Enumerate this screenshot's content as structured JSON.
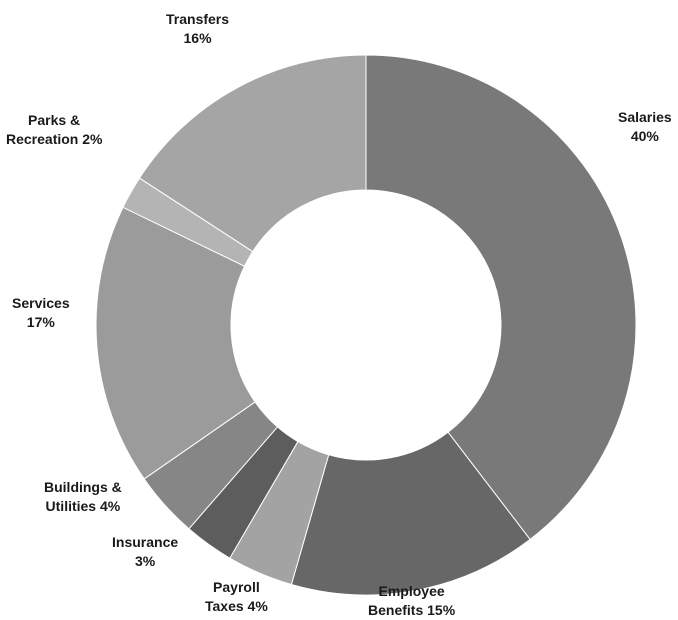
{
  "chart_data": {
    "type": "pie",
    "donut": true,
    "title": "",
    "legend": "none",
    "slices": [
      {
        "category": "Salaries",
        "value": 40,
        "line1": "Salaries",
        "line2": "40%",
        "color": "#797979"
      },
      {
        "category": "Employee Benefits",
        "value": 15,
        "line1": "Employee",
        "line2": "Benefits 15%",
        "color": "#676767"
      },
      {
        "category": "Payroll Taxes",
        "value": 4,
        "line1": "Payroll",
        "line2": "Taxes 4%",
        "color": "#a3a3a3"
      },
      {
        "category": "Insurance",
        "value": 3,
        "line1": "Insurance",
        "line2": "3%",
        "color": "#5d5d5d"
      },
      {
        "category": "Buildings & Utilities",
        "value": 4,
        "line1": "Buildings &",
        "line2": "Utilities 4%",
        "color": "#868686"
      },
      {
        "category": "Services",
        "value": 17,
        "line1": "Services",
        "line2": "17%",
        "color": "#9b9b9b"
      },
      {
        "category": "Parks & Recreation",
        "value": 2,
        "line1": "Parks &",
        "line2": "Recreation 2%",
        "color": "#b4b4b4"
      },
      {
        "category": "Transfers",
        "value": 16,
        "line1": "Transfers",
        "line2": "16%",
        "color": "#a5a5a5"
      }
    ]
  }
}
